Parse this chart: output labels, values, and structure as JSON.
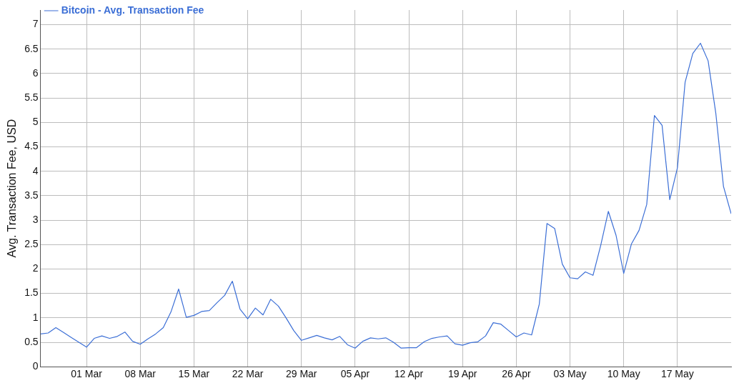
{
  "chart_data": {
    "type": "line",
    "ylabel": "Avg. Transaction Fee, USD",
    "legend": "top left",
    "grid": true,
    "marker": "none",
    "line_style": "solid",
    "xlim": [
      "--02-23",
      "--05-24"
    ],
    "xticks": [
      {
        "value": "--03-01",
        "label": "01 Mar"
      },
      {
        "value": "--03-08",
        "label": "08 Mar"
      },
      {
        "value": "--03-15",
        "label": "15 Mar"
      },
      {
        "value": "--03-22",
        "label": "22 Mar"
      },
      {
        "value": "--03-29",
        "label": "29 Mar"
      },
      {
        "value": "--04-05",
        "label": "05 Apr"
      },
      {
        "value": "--04-12",
        "label": "12 Apr"
      },
      {
        "value": "--04-19",
        "label": "19 Apr"
      },
      {
        "value": "--04-26",
        "label": "26 Apr"
      },
      {
        "value": "--05-03",
        "label": "03 May"
      },
      {
        "value": "--05-10",
        "label": "10 May"
      },
      {
        "value": "--05-17",
        "label": "17 May"
      }
    ],
    "ylim": [
      0,
      7.3
    ],
    "yticks": [
      0,
      0.5,
      1,
      1.5,
      2,
      2.5,
      3,
      3.5,
      4,
      4.5,
      5,
      5.5,
      6,
      6.5,
      7
    ],
    "x": [
      "--02-23",
      "--02-24",
      "--02-25",
      "--02-26",
      "--02-27",
      "--02-28",
      "--03-01",
      "--03-02",
      "--03-03",
      "--03-04",
      "--03-05",
      "--03-06",
      "--03-07",
      "--03-08",
      "--03-09",
      "--03-10",
      "--03-11",
      "--03-12",
      "--03-13",
      "--03-14",
      "--03-15",
      "--03-16",
      "--03-17",
      "--03-18",
      "--03-19",
      "--03-20",
      "--03-21",
      "--03-22",
      "--03-23",
      "--03-24",
      "--03-25",
      "--03-26",
      "--03-27",
      "--03-28",
      "--03-29",
      "--03-30",
      "--03-31",
      "--04-01",
      "--04-02",
      "--04-03",
      "--04-04",
      "--04-05",
      "--04-06",
      "--04-07",
      "--04-08",
      "--04-09",
      "--04-10",
      "--04-11",
      "--04-12",
      "--04-13",
      "--04-14",
      "--04-15",
      "--04-16",
      "--04-17",
      "--04-18",
      "--04-19",
      "--04-20",
      "--04-21",
      "--04-22",
      "--04-23",
      "--04-24",
      "--04-25",
      "--04-26",
      "--04-27",
      "--04-28",
      "--04-29",
      "--04-30",
      "--05-01",
      "--05-02",
      "--05-03",
      "--05-04",
      "--05-05",
      "--05-06",
      "--05-07",
      "--05-08",
      "--05-09",
      "--05-10",
      "--05-11",
      "--05-12",
      "--05-13",
      "--05-14",
      "--05-15",
      "--05-16",
      "--05-17",
      "--05-18",
      "--05-19",
      "--05-20",
      "--05-21",
      "--05-22",
      "--05-23",
      "--05-24"
    ],
    "series": [
      {
        "name": "Bitcoin - Avg. Transaction Fee",
        "color": "#3c6fd6",
        "values": [
          0.67,
          0.69,
          0.8,
          0.7,
          0.6,
          0.5,
          0.4,
          0.58,
          0.63,
          0.58,
          0.62,
          0.71,
          0.52,
          0.46,
          0.57,
          0.67,
          0.8,
          1.12,
          1.59,
          1.01,
          1.05,
          1.13,
          1.15,
          1.31,
          1.46,
          1.75,
          1.18,
          0.98,
          1.2,
          1.06,
          1.38,
          1.24,
          1.0,
          0.74,
          0.54,
          0.59,
          0.64,
          0.59,
          0.55,
          0.62,
          0.45,
          0.38,
          0.52,
          0.59,
          0.57,
          0.59,
          0.5,
          0.38,
          0.39,
          0.39,
          0.51,
          0.58,
          0.61,
          0.63,
          0.47,
          0.44,
          0.49,
          0.51,
          0.63,
          0.9,
          0.87,
          0.74,
          0.61,
          0.69,
          0.65,
          1.28,
          2.93,
          2.83,
          2.1,
          1.82,
          1.8,
          1.94,
          1.87,
          2.48,
          3.18,
          2.69,
          1.91,
          2.51,
          2.79,
          3.32,
          5.14,
          4.94,
          3.42,
          4.07,
          5.82,
          6.41,
          6.62,
          6.26,
          5.19,
          3.69,
          3.13
        ]
      }
    ]
  }
}
